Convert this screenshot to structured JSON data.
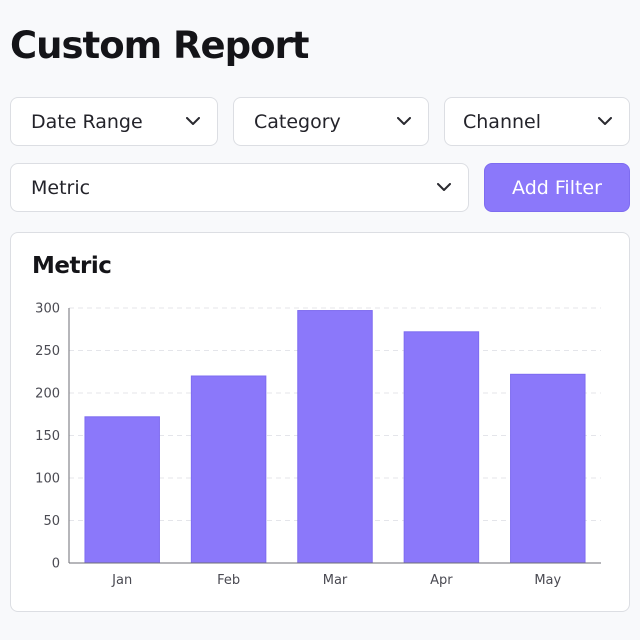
{
  "page": {
    "title": "Custom Report"
  },
  "filters": {
    "date_range": {
      "label": "Date Range",
      "icon": "chevron-down-icon"
    },
    "category": {
      "label": "Category",
      "icon": "chevron-down-icon"
    },
    "channel": {
      "label": "Channel",
      "icon": "chevron-down-icon"
    },
    "metric": {
      "label": "Metric",
      "icon": "chevron-down-icon"
    },
    "add_filter_label": "Add Filter"
  },
  "colors": {
    "accent": "#8b78fa",
    "bar": "#8b78fa",
    "bar_stroke": "#7e6cf0"
  },
  "card": {
    "title": "Metric"
  },
  "chart_data": {
    "type": "bar",
    "title": "Metric",
    "categories": [
      "Jan",
      "Feb",
      "Mar",
      "Apr",
      "May"
    ],
    "values": [
      172,
      220,
      297,
      272,
      222
    ],
    "xlabel": "",
    "ylabel": "",
    "ylim": [
      0,
      300
    ],
    "yticks": [
      0,
      50,
      100,
      150,
      200,
      250,
      300
    ],
    "grid": true,
    "legend": "none"
  }
}
